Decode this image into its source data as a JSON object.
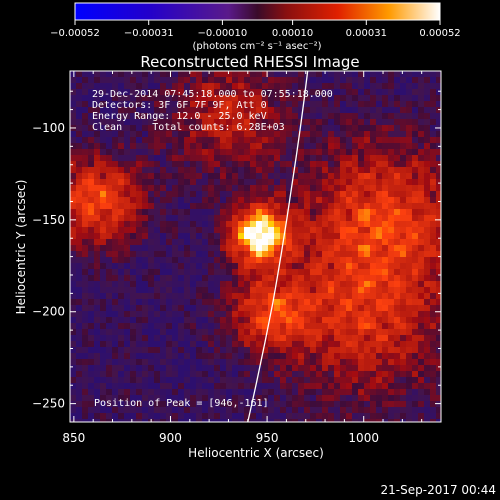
{
  "chart_data": {
    "type": "heatmap",
    "title": "Reconstructed RHESSI Image",
    "xlabel": "Heliocentric X (arcsec)",
    "ylabel": "Heliocentric Y (arcsec)",
    "xlim": [
      848,
      1040
    ],
    "ylim": [
      -260,
      -69
    ],
    "x_ticks": [
      {
        "value": 850,
        "label": "850"
      },
      {
        "value": 900,
        "label": "900"
      },
      {
        "value": 950,
        "label": "950"
      },
      {
        "value": 1000,
        "label": "1000"
      }
    ],
    "y_ticks": [
      {
        "value": -100,
        "label": "−100"
      },
      {
        "value": -150,
        "label": "−150"
      },
      {
        "value": -200,
        "label": "−200"
      },
      {
        "value": -250,
        "label": "−250"
      }
    ],
    "colorbar": {
      "min": -0.00052,
      "max": 0.00052,
      "ticks": [
        {
          "value": -0.00052,
          "label": "−0.00052"
        },
        {
          "value": -0.00031,
          "label": "−0.00031"
        },
        {
          "value": -0.0001,
          "label": "−0.00010"
        },
        {
          "value": 0.0001,
          "label": "0.00010"
        },
        {
          "value": 0.00031,
          "label": "0.00031"
        },
        {
          "value": 0.00052,
          "label": "0.00052"
        }
      ],
      "unit": "(photons cm⁻² s⁻¹ asec⁻²)"
    },
    "annotations": [
      "29-Dec-2014 07:45:18.000 to 07:55:18.000",
      "Detectors: 3F 6F 7F 9F, Att 0",
      "Energy Range: 12.0 - 25.0 keV",
      "Clean     Total counts: 6.28E+03"
    ],
    "peak_label": "Position of Peak = [946,-161]",
    "peak": {
      "x": 946,
      "y": -161
    },
    "sources": [
      {
        "x": 946,
        "y": -158,
        "sigma": 10,
        "amp": 1.0
      },
      {
        "x": 952,
        "y": -200,
        "sigma": 14,
        "amp": 0.45
      },
      {
        "x": 862,
        "y": -140,
        "sigma": 16,
        "amp": 0.5
      },
      {
        "x": 1010,
        "y": -150,
        "sigma": 28,
        "amp": 0.45
      },
      {
        "x": 1000,
        "y": -205,
        "sigma": 28,
        "amp": 0.35
      },
      {
        "x": 930,
        "y": -95,
        "sigma": 20,
        "amp": 0.3
      }
    ],
    "limb": [
      {
        "x": 971,
        "y": -69
      },
      {
        "x": 963,
        "y": -130
      },
      {
        "x": 953,
        "y": -195
      },
      {
        "x": 940,
        "y": -260
      }
    ]
  },
  "footer": {
    "timestamp": "21-Sep-2017 00:44"
  }
}
